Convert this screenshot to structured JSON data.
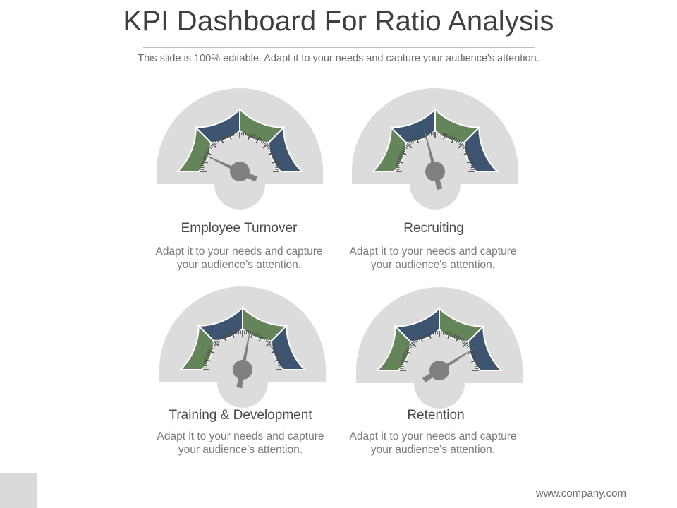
{
  "slide": {
    "title": "KPI Dashboard For Ratio Analysis",
    "subtitle": "This slide is 100% editable. Adapt it to your needs and capture your audience's attention.",
    "footer": "www.company.com"
  },
  "colors": {
    "green": "#64855a",
    "navy": "#3d5570",
    "gauge_bg": "#dcdcdc",
    "needle": "#808080"
  },
  "gauges": [
    {
      "label": "Employee Turnover",
      "desc_line1": "Adapt it to your needs and capture",
      "desc_line2": "your audience's attention.",
      "needle_fraction": 0.14
    },
    {
      "label": "Recruiting",
      "desc_line1": "Adapt it to your needs and capture",
      "desc_line2": "your audience's attention.",
      "needle_fraction": 0.42
    },
    {
      "label": "Training & Development",
      "desc_line1": "Adapt it to your needs and capture",
      "desc_line2": "your audience's attention.",
      "needle_fraction": 0.56
    },
    {
      "label": "Retention",
      "desc_line1": "Adapt it to your needs and capture",
      "desc_line2": "your audience's attention.",
      "needle_fraction": 0.82
    }
  ]
}
